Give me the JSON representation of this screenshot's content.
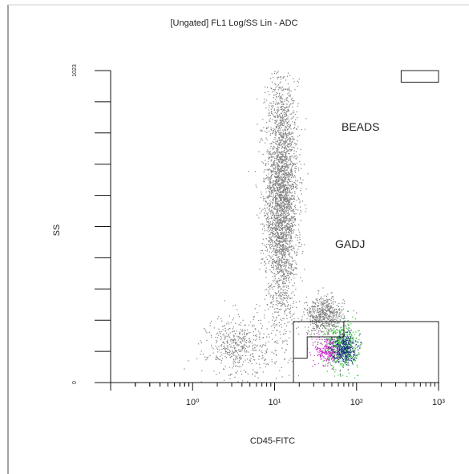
{
  "chart_data": {
    "type": "scatter",
    "title": "[Ungated] FL1 Log/SS Lin - ADC",
    "xlabel": "CD45-FITC",
    "ylabel": "SS",
    "x_scale": "log",
    "x_range": [
      0.1,
      1000
    ],
    "x_ticks": [
      {
        "value": 1,
        "label": "10⁰"
      },
      {
        "value": 10,
        "label": "10¹"
      },
      {
        "value": 100,
        "label": "10²"
      },
      {
        "value": 1000,
        "label": "10³"
      }
    ],
    "y_scale": "linear",
    "y_range": [
      0,
      1023
    ],
    "y_ticks": [
      {
        "value": 0,
        "label": "0"
      },
      {
        "value": 1023,
        "label": "1023"
      }
    ],
    "regions": [
      {
        "name": "BEADS",
        "x": [
          350,
          1000
        ],
        "y": [
          985,
          1023
        ]
      },
      {
        "name": "GADJ",
        "x": [
          17,
          1000
        ],
        "y": [
          0,
          200
        ]
      }
    ],
    "populations": [
      {
        "color": "#808080",
        "center": [
          12,
          600
        ],
        "spread": [
          0.1,
          200
        ],
        "count": 3200
      },
      {
        "color": "#808080",
        "center": [
          3.5,
          120
        ],
        "spread": [
          0.18,
          50
        ],
        "count": 500
      },
      {
        "color": "#808080",
        "center": [
          40,
          220
        ],
        "spread": [
          0.12,
          30
        ],
        "count": 600
      },
      {
        "color": "#22cc22",
        "center": [
          65,
          120
        ],
        "spread": [
          0.1,
          35
        ],
        "count": 500
      },
      {
        "color": "#cc22cc",
        "center": [
          45,
          105
        ],
        "spread": [
          0.08,
          25
        ],
        "count": 250
      },
      {
        "color": "#1a2a8a",
        "center": [
          70,
          115
        ],
        "spread": [
          0.07,
          25
        ],
        "count": 350
      }
    ],
    "grid": false,
    "legend": "none"
  }
}
